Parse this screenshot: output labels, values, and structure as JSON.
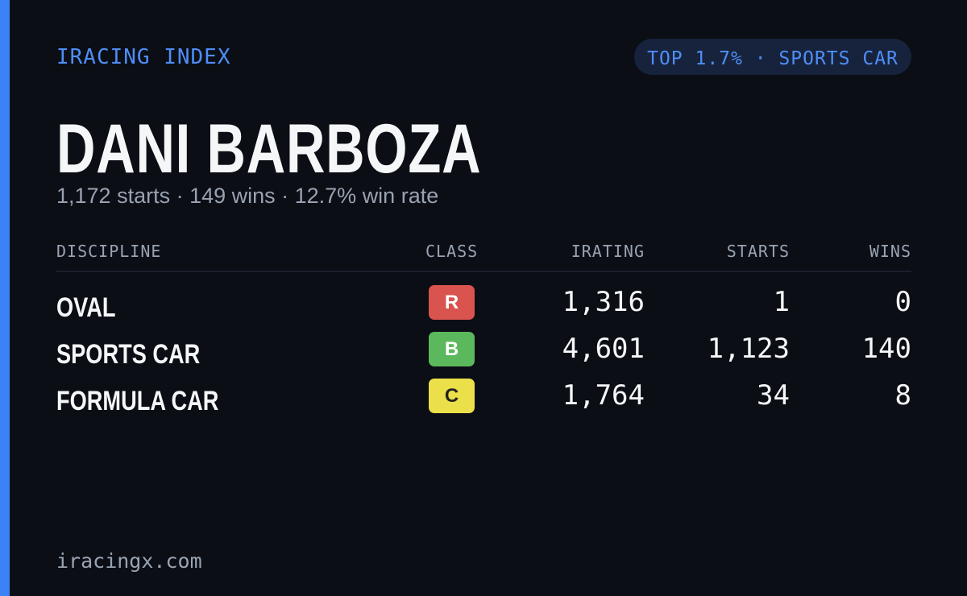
{
  "header": {
    "brand": "IRACING INDEX",
    "badge": "TOP 1.7% · SPORTS CAR"
  },
  "profile": {
    "name": "DANI BARBOZA",
    "summary": "1,172 starts · 149 wins · 12.7% win rate"
  },
  "table": {
    "columns": [
      "DISCIPLINE",
      "CLASS",
      "IRATING",
      "STARTS",
      "WINS"
    ],
    "rows": [
      {
        "discipline": "OVAL",
        "class": "R",
        "class_color": "#d9534f",
        "irating": "1,316",
        "starts": "1",
        "wins": "0"
      },
      {
        "discipline": "SPORTS CAR",
        "class": "B",
        "class_color": "#5cb85c",
        "irating": "4,601",
        "starts": "1,123",
        "wins": "140"
      },
      {
        "discipline": "FORMULA CAR",
        "class": "C",
        "class_color": "#ece04a",
        "irating": "1,764",
        "starts": "34",
        "wins": "8"
      }
    ]
  },
  "footer": {
    "site": "iracingx.com"
  }
}
